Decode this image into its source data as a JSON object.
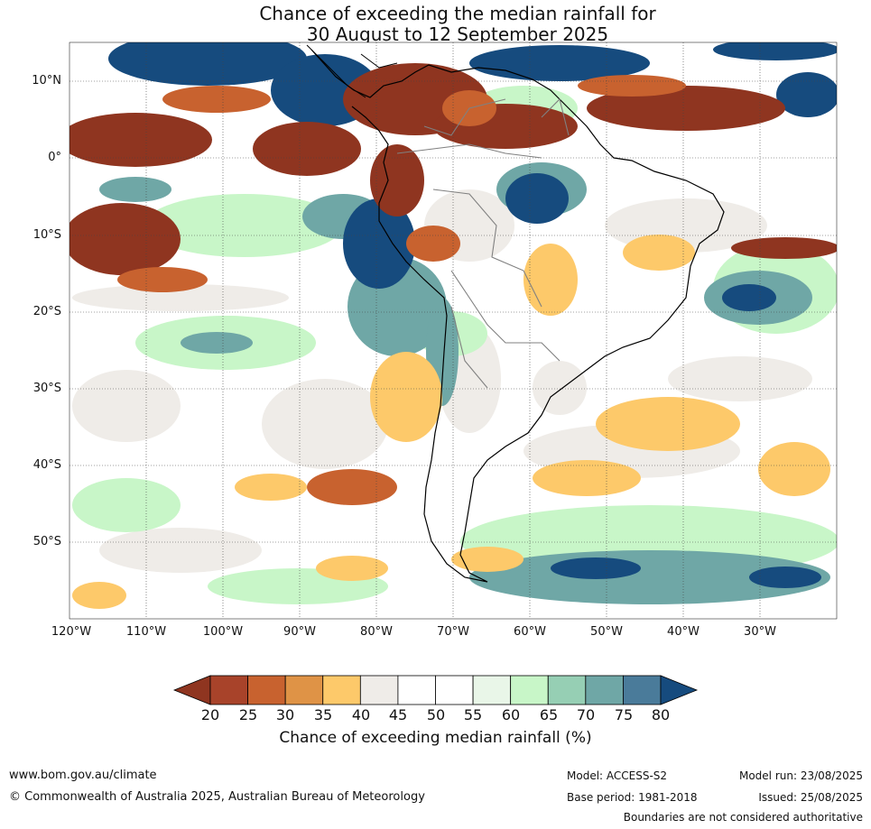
{
  "title": {
    "line1": "Chance of exceeding the median rainfall for",
    "line2": "30 August to 12 September 2025"
  },
  "map": {
    "lat_labels": [
      "10°N",
      "0°",
      "10°S",
      "20°S",
      "30°S",
      "40°S",
      "50°S"
    ],
    "lon_labels": [
      "120°W",
      "110°W",
      "100°W",
      "90°W",
      "80°W",
      "70°W",
      "60°W",
      "50°W",
      "40°W",
      "30°W"
    ],
    "lat_values": [
      10,
      0,
      -10,
      -20,
      -30,
      -40,
      -50
    ],
    "lon_values": [
      -120,
      -110,
      -100,
      -90,
      -80,
      -70,
      -60,
      -50,
      -40,
      -30
    ],
    "extent": {
      "lon_min": -120,
      "lon_max": -20,
      "lat_min": -60,
      "lat_max": 15
    },
    "ocean_color": "#ffffff",
    "coastline_color": "#000000",
    "border_color": "#808080"
  },
  "colorbar": {
    "ticks": [
      "20",
      "25",
      "30",
      "35",
      "40",
      "45",
      "50",
      "55",
      "60",
      "65",
      "70",
      "75",
      "80"
    ],
    "colors": [
      "#a8432a",
      "#c8622f",
      "#df9346",
      "#fdc96a",
      "#efece8",
      "#ffffff",
      "#ffffff",
      "#e9f6e8",
      "#c8f6c8",
      "#96cfb4",
      "#6fa7a6",
      "#4a7b9a"
    ],
    "low_extend_color": "#8f3520",
    "high_extend_color": "#164b7e",
    "label": "Chance of exceeding median rainfall (%)"
  },
  "footer": {
    "website": "www.bom.gov.au/climate",
    "copyright": "© Commonwealth of Australia 2025, Australian Bureau of Meteorology",
    "model": "Model: ACCESS-S2",
    "base_period": "Base period: 1981-2018",
    "model_run": "Model run: 23/08/2025",
    "issued": "Issued: 25/08/2025",
    "disclaimer": "Boundaries are not considered authoritative"
  }
}
